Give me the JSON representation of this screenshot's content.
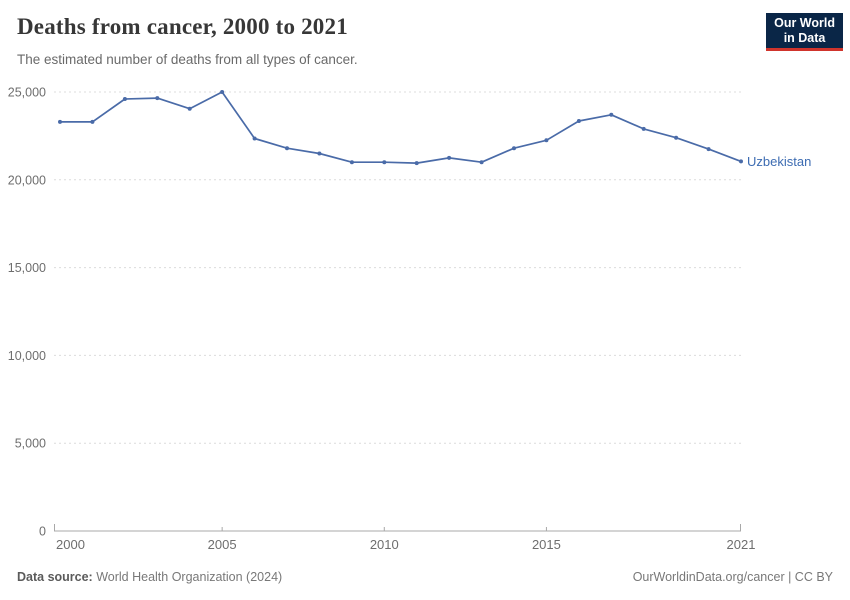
{
  "logo": {
    "line1": "Our World",
    "line2": "in Data",
    "bg_color": "#0a2647",
    "accent_color": "#d0342c"
  },
  "chart_data": {
    "type": "line",
    "title": "Deaths from cancer, 2000 to 2021",
    "subtitle": "The estimated number of deaths from all types of cancer.",
    "xlabel": "",
    "ylabel": "",
    "xlim": [
      2000,
      2021
    ],
    "ylim": [
      0,
      25000
    ],
    "grid": "horizontal-dashed",
    "legend_position": "end-of-line-label",
    "x_ticks": [
      {
        "value": 2000,
        "label": "2000"
      },
      {
        "value": 2005,
        "label": "2005"
      },
      {
        "value": 2010,
        "label": "2010"
      },
      {
        "value": 2015,
        "label": "2015"
      },
      {
        "value": 2021,
        "label": "2021"
      }
    ],
    "y_ticks": [
      {
        "value": 0,
        "label": "0"
      },
      {
        "value": 5000,
        "label": "5,000"
      },
      {
        "value": 10000,
        "label": "10,000"
      },
      {
        "value": 15000,
        "label": "15,000"
      },
      {
        "value": 20000,
        "label": "20,000"
      },
      {
        "value": 25000,
        "label": "25,000"
      }
    ],
    "series": [
      {
        "name": "Uzbekistan",
        "color": "#4a6ba8",
        "label_color": "#3d6cb2",
        "x": [
          2000,
          2001,
          2002,
          2003,
          2004,
          2005,
          2006,
          2007,
          2008,
          2009,
          2010,
          2011,
          2012,
          2013,
          2014,
          2015,
          2016,
          2017,
          2018,
          2019,
          2020,
          2021
        ],
        "values": [
          23300,
          23300,
          24600,
          24650,
          24050,
          25000,
          22350,
          21800,
          21500,
          21000,
          21000,
          20950,
          21250,
          21000,
          21800,
          22250,
          23350,
          23700,
          22900,
          22400,
          21750,
          21050
        ]
      }
    ]
  },
  "footer": {
    "source_label": "Data source:",
    "source_value": " World Health Organization (2024)",
    "credit": "OurWorldinData.org/cancer | CC BY"
  }
}
